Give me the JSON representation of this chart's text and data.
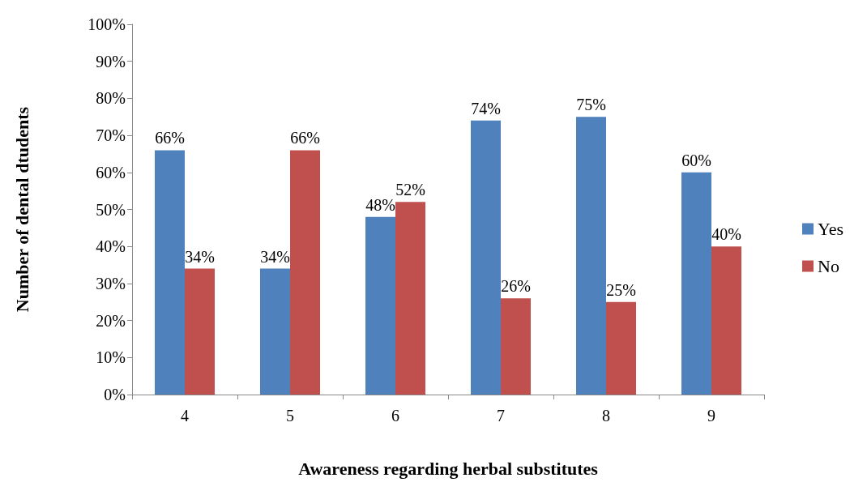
{
  "chart_data": {
    "type": "bar",
    "xlabel": "Awareness regarding herbal substitutes",
    "ylabel": "Number of dental dtudents",
    "categories": [
      "4",
      "5",
      "6",
      "7",
      "8",
      "9"
    ],
    "series": [
      {
        "name": "Yes",
        "color": "#4f81bd",
        "values": [
          66,
          34,
          48,
          74,
          75,
          60
        ],
        "value_labels": [
          "66%",
          "34%",
          "48%",
          "74%",
          "75%",
          "60%"
        ]
      },
      {
        "name": "No",
        "color": "#c0504d",
        "values": [
          34,
          66,
          52,
          26,
          25,
          40
        ],
        "value_labels": [
          "34%",
          "66%",
          "52%",
          "26%",
          "25%",
          "40%"
        ]
      }
    ],
    "ylim": [
      0,
      100
    ],
    "yticks": [
      {
        "value": 0,
        "label": "0%"
      },
      {
        "value": 10,
        "label": "10%"
      },
      {
        "value": 20,
        "label": "20%"
      },
      {
        "value": 30,
        "label": "30%"
      },
      {
        "value": 40,
        "label": "40%"
      },
      {
        "value": 50,
        "label": "50%"
      },
      {
        "value": 60,
        "label": "60%"
      },
      {
        "value": 70,
        "label": "70%"
      },
      {
        "value": 80,
        "label": "80%"
      },
      {
        "value": 90,
        "label": "90%"
      },
      {
        "value": 100,
        "label": "100%"
      }
    ],
    "grid": false,
    "legend": "right"
  }
}
